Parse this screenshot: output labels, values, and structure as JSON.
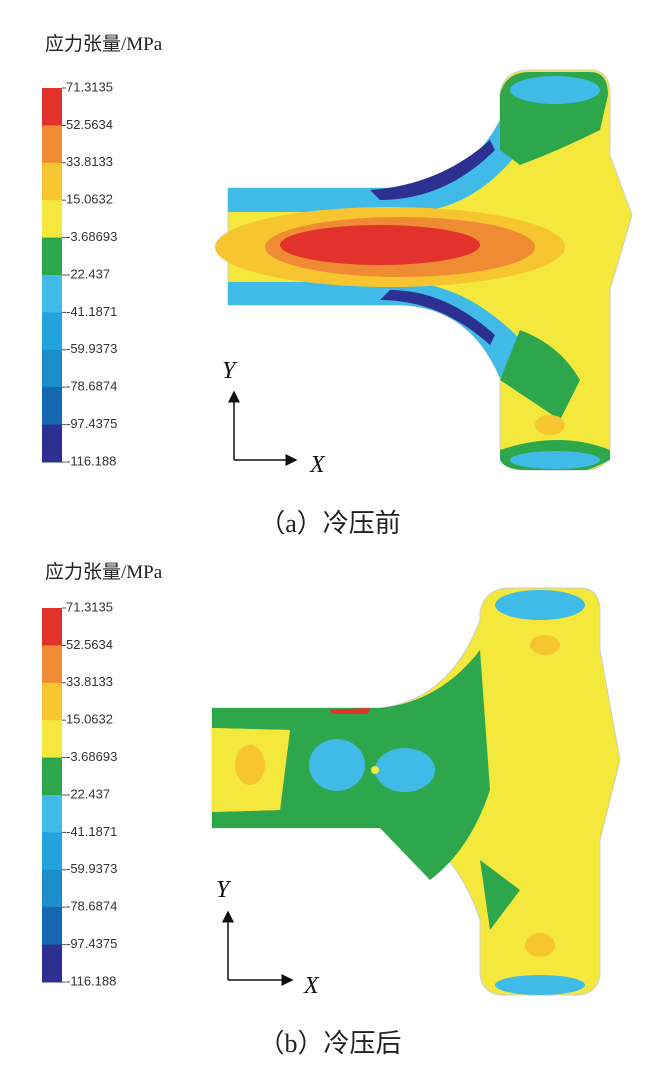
{
  "panels": [
    {
      "legend": {
        "title": "应力张量/MPa",
        "labels": [
          "71.3135",
          "52.5634",
          "33.8133",
          "15.0632",
          "-3.68693",
          "-22.437",
          "-41.1871",
          "-59.9373",
          "-78.6874",
          "-97.4375",
          "-116.188"
        ],
        "colors": [
          "#e2322b",
          "#ef8b32",
          "#f6c530",
          "#f4e83c",
          "#2ea64b",
          "#40bbe8",
          "#22a3de",
          "#1b8dcc",
          "#1667b2",
          "#2b3091"
        ]
      },
      "axes": {
        "y": "Y",
        "x": "X"
      },
      "caption": "（a）冷压前"
    },
    {
      "legend": {
        "title": "应力张量/MPa",
        "labels": [
          "71.3135",
          "52.5634",
          "33.8133",
          "15.0632",
          "-3.68693",
          "-22.437",
          "-41.1871",
          "-59.9373",
          "-78.6874",
          "-97.4375",
          "-116.188"
        ],
        "colors": [
          "#e2322b",
          "#ef8b32",
          "#f6c530",
          "#f4e83c",
          "#2ea64b",
          "#40bbe8",
          "#22a3de",
          "#1b8dcc",
          "#1667b2",
          "#2b3091"
        ]
      },
      "axes": {
        "y": "Y",
        "x": "X"
      },
      "caption": "（b）冷压后"
    }
  ]
}
